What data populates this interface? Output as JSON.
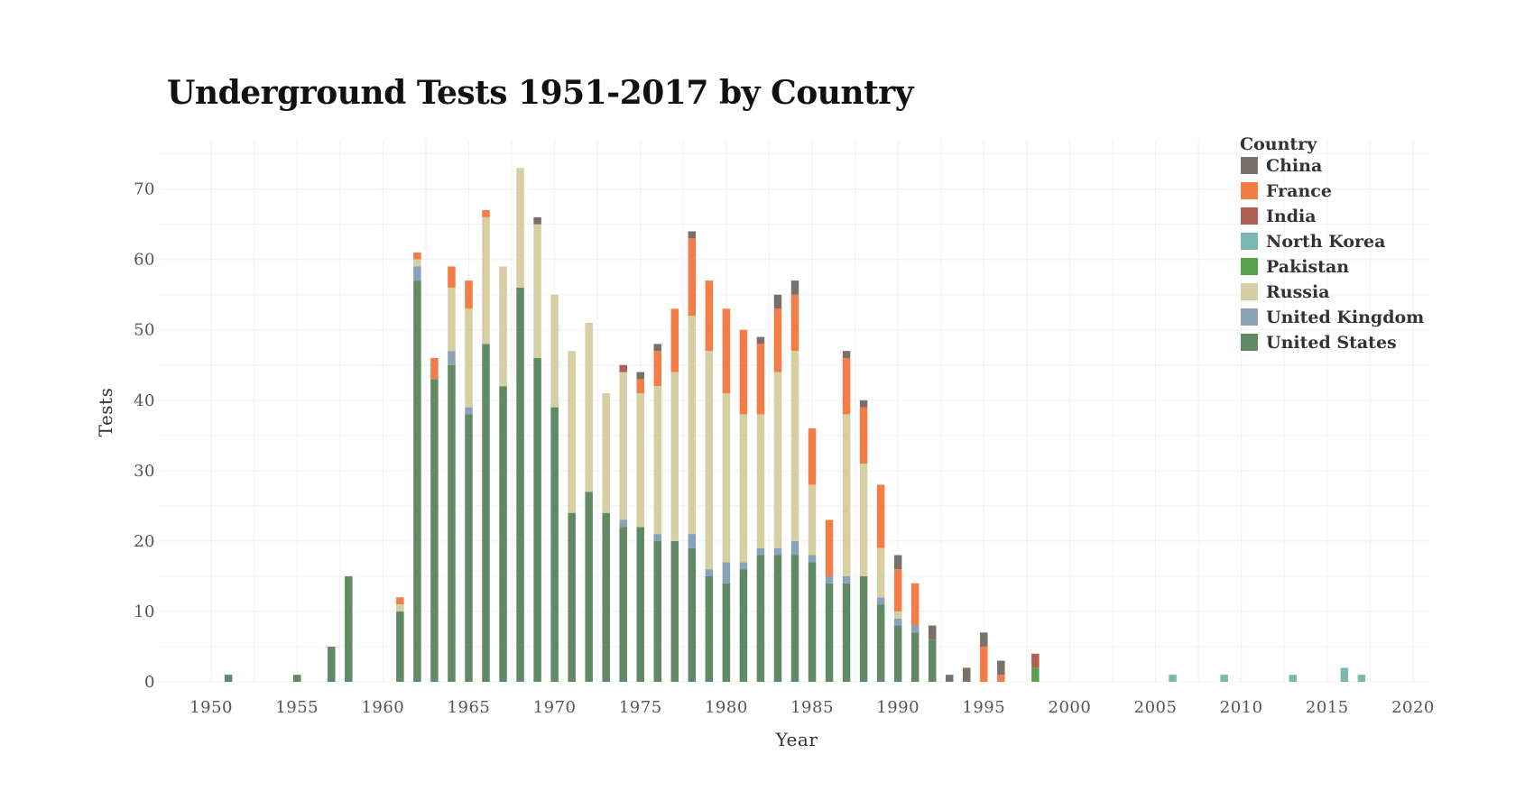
{
  "chart_data": {
    "type": "bar",
    "stacked": true,
    "title": "Underground Tests 1951-2017 by Country",
    "xlabel": "Year",
    "ylabel": "Tests",
    "xlim": [
      1947,
      2021
    ],
    "ylim": [
      0,
      77
    ],
    "xticks": [
      "1950",
      "1955",
      "1960",
      "1965",
      "1970",
      "1975",
      "1980",
      "1985",
      "1990",
      "1995",
      "2000",
      "2005",
      "2010",
      "2015",
      "2020"
    ],
    "yticks": [
      "0",
      "10",
      "20",
      "30",
      "40",
      "50",
      "60",
      "70"
    ],
    "grid": true,
    "legend_title": "Country",
    "legend_position": "top-right",
    "series": [
      {
        "name": "China",
        "color": "#7b7068"
      },
      {
        "name": "France",
        "color": "#f47d47"
      },
      {
        "name": "India",
        "color": "#b15f52"
      },
      {
        "name": "North Korea",
        "color": "#78b8b1"
      },
      {
        "name": "Pakistan",
        "color": "#5aa04c"
      },
      {
        "name": "Russia",
        "color": "#d6cfa3"
      },
      {
        "name": "United Kingdom",
        "color": "#8aa1b8"
      },
      {
        "name": "United States",
        "color": "#608a63"
      }
    ],
    "stack_order": [
      "United States",
      "Pakistan",
      "United Kingdom",
      "Russia",
      "North Korea",
      "India",
      "France",
      "China"
    ],
    "data": [
      {
        "year": 1951,
        "United States": 1
      },
      {
        "year": 1955,
        "United States": 1
      },
      {
        "year": 1957,
        "United States": 5
      },
      {
        "year": 1958,
        "United States": 15
      },
      {
        "year": 1961,
        "United States": 10,
        "Russia": 1,
        "France": 1
      },
      {
        "year": 1962,
        "United States": 57,
        "United Kingdom": 2,
        "Russia": 1,
        "France": 1
      },
      {
        "year": 1963,
        "United States": 43,
        "France": 3
      },
      {
        "year": 1964,
        "United States": 45,
        "United Kingdom": 2,
        "Russia": 9,
        "France": 3
      },
      {
        "year": 1965,
        "United States": 38,
        "United Kingdom": 1,
        "Russia": 14,
        "France": 4
      },
      {
        "year": 1966,
        "United States": 48,
        "Russia": 18,
        "France": 1
      },
      {
        "year": 1967,
        "United States": 42,
        "Russia": 17
      },
      {
        "year": 1968,
        "United States": 56,
        "Russia": 17
      },
      {
        "year": 1969,
        "United States": 46,
        "Russia": 19,
        "China": 1
      },
      {
        "year": 1970,
        "United States": 39,
        "Russia": 16
      },
      {
        "year": 1971,
        "United States": 24,
        "Russia": 23
      },
      {
        "year": 1972,
        "United States": 27,
        "Russia": 24
      },
      {
        "year": 1973,
        "United States": 24,
        "Russia": 17
      },
      {
        "year": 1974,
        "United States": 22,
        "United Kingdom": 1,
        "Russia": 21,
        "India": 1
      },
      {
        "year": 1975,
        "United States": 22,
        "Russia": 19,
        "France": 2,
        "China": 1
      },
      {
        "year": 1976,
        "United States": 20,
        "United Kingdom": 1,
        "Russia": 21,
        "France": 5,
        "China": 1
      },
      {
        "year": 1977,
        "United States": 20,
        "Russia": 24,
        "France": 9
      },
      {
        "year": 1978,
        "United States": 19,
        "United Kingdom": 2,
        "Russia": 31,
        "France": 11,
        "China": 1
      },
      {
        "year": 1979,
        "United States": 15,
        "United Kingdom": 1,
        "Russia": 31,
        "France": 10
      },
      {
        "year": 1980,
        "United States": 14,
        "United Kingdom": 3,
        "Russia": 24,
        "France": 12
      },
      {
        "year": 1981,
        "United States": 16,
        "United Kingdom": 1,
        "Russia": 21,
        "France": 12
      },
      {
        "year": 1982,
        "United States": 18,
        "United Kingdom": 1,
        "Russia": 19,
        "France": 10,
        "China": 1
      },
      {
        "year": 1983,
        "United States": 18,
        "United Kingdom": 1,
        "Russia": 25,
        "France": 9,
        "China": 2
      },
      {
        "year": 1984,
        "United States": 18,
        "United Kingdom": 2,
        "Russia": 27,
        "France": 8,
        "China": 2
      },
      {
        "year": 1985,
        "United States": 17,
        "United Kingdom": 1,
        "Russia": 10,
        "France": 8
      },
      {
        "year": 1986,
        "United States": 14,
        "United Kingdom": 1,
        "France": 8
      },
      {
        "year": 1987,
        "United States": 14,
        "United Kingdom": 1,
        "Russia": 23,
        "France": 8,
        "China": 1
      },
      {
        "year": 1988,
        "United States": 15,
        "Russia": 16,
        "France": 8,
        "China": 1
      },
      {
        "year": 1989,
        "United States": 11,
        "United Kingdom": 1,
        "Russia": 7,
        "France": 9
      },
      {
        "year": 1990,
        "United States": 8,
        "United Kingdom": 1,
        "Russia": 1,
        "France": 6,
        "China": 2
      },
      {
        "year": 1991,
        "United States": 7,
        "United Kingdom": 1,
        "France": 6
      },
      {
        "year": 1992,
        "United States": 6,
        "China": 2
      },
      {
        "year": 1993,
        "China": 1
      },
      {
        "year": 1994,
        "China": 2
      },
      {
        "year": 1995,
        "France": 5,
        "China": 2
      },
      {
        "year": 1996,
        "France": 1,
        "China": 2
      },
      {
        "year": 1998,
        "Pakistan": 2,
        "India": 2
      },
      {
        "year": 2006,
        "North Korea": 1
      },
      {
        "year": 2009,
        "North Korea": 1
      },
      {
        "year": 2013,
        "North Korea": 1
      },
      {
        "year": 2016,
        "North Korea": 2
      },
      {
        "year": 2017,
        "North Korea": 1
      }
    ]
  }
}
